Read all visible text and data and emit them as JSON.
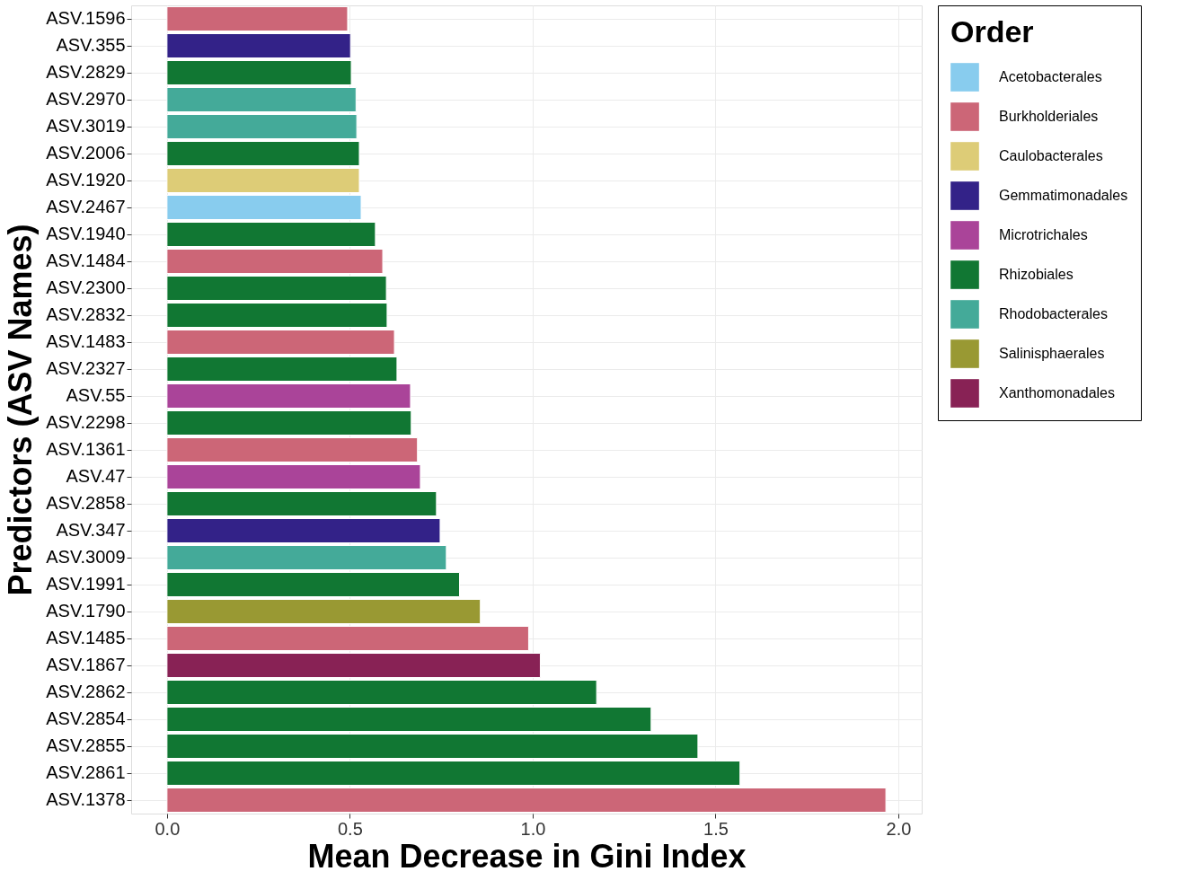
{
  "chart_data": {
    "type": "bar",
    "orientation": "horizontal",
    "xlabel": "Mean Decrease in Gini Index",
    "ylabel": "Predictors (ASV Names)",
    "legend_title": "Order",
    "legend": "right",
    "grid": true,
    "categories": [
      "ASV.1596",
      "ASV.355",
      "ASV.2829",
      "ASV.2970",
      "ASV.3019",
      "ASV.2006",
      "ASV.1920",
      "ASV.2467",
      "ASV.1940",
      "ASV.1484",
      "ASV.2300",
      "ASV.2832",
      "ASV.1483",
      "ASV.2327",
      "ASV.55",
      "ASV.2298",
      "ASV.1361",
      "ASV.47",
      "ASV.2858",
      "ASV.347",
      "ASV.3009",
      "ASV.1991",
      "ASV.1790",
      "ASV.1485",
      "ASV.1867",
      "ASV.2862",
      "ASV.2854",
      "ASV.2855",
      "ASV.2861",
      "ASV.1378"
    ],
    "xlim": [
      -0.098,
      2.064
    ],
    "xticks": [
      {
        "value": 0,
        "label": "0.0"
      },
      0.5,
      {
        "value": 1,
        "label": "1.0"
      },
      1.5,
      {
        "value": 2,
        "label": "2.0"
      }
    ],
    "series": [
      {
        "name": "Acetobacterales",
        "color": "#88ccee",
        "values": [
          null,
          null,
          null,
          null,
          null,
          null,
          null,
          0.531,
          null,
          null,
          null,
          null,
          null,
          null,
          null,
          null,
          null,
          null,
          null,
          null,
          null,
          null,
          null,
          null,
          null,
          null,
          null,
          null,
          null,
          null
        ]
      },
      {
        "name": "Burkholderiales",
        "color": "#cc6677",
        "values": [
          0.494,
          null,
          null,
          null,
          null,
          null,
          null,
          null,
          null,
          0.59,
          null,
          null,
          0.622,
          null,
          null,
          null,
          0.685,
          null,
          null,
          null,
          null,
          null,
          null,
          0.989,
          null,
          null,
          null,
          null,
          null,
          1.966
        ]
      },
      {
        "name": "Caulobacterales",
        "color": "#ddcc77",
        "values": [
          null,
          null,
          null,
          null,
          null,
          null,
          0.526,
          null,
          null,
          null,
          null,
          null,
          null,
          null,
          null,
          null,
          null,
          null,
          null,
          null,
          null,
          null,
          null,
          null,
          null,
          null,
          null,
          null,
          null,
          null
        ]
      },
      {
        "name": "Gemmatimonadales",
        "color": "#332288",
        "values": [
          null,
          0.502,
          null,
          null,
          null,
          null,
          null,
          null,
          null,
          null,
          null,
          null,
          null,
          null,
          null,
          null,
          null,
          null,
          null,
          0.747,
          null,
          null,
          null,
          null,
          null,
          null,
          null,
          null,
          null,
          null
        ]
      },
      {
        "name": "Microtrichales",
        "color": "#aa4499",
        "values": [
          null,
          null,
          null,
          null,
          null,
          null,
          null,
          null,
          null,
          null,
          null,
          null,
          null,
          null,
          0.666,
          null,
          null,
          0.693,
          null,
          null,
          null,
          null,
          null,
          null,
          null,
          null,
          null,
          null,
          null,
          null
        ]
      },
      {
        "name": "Rhizobiales",
        "color": "#117733",
        "values": [
          null,
          null,
          0.504,
          null,
          null,
          0.526,
          null,
          null,
          0.57,
          null,
          0.6,
          0.602,
          null,
          0.629,
          null,
          0.668,
          null,
          null,
          0.737,
          null,
          null,
          0.8,
          null,
          null,
          null,
          1.175,
          1.324,
          1.452,
          1.567,
          null
        ]
      },
      {
        "name": "Rhodobacterales",
        "color": "#44aa99",
        "values": [
          null,
          null,
          null,
          0.517,
          0.519,
          null,
          null,
          null,
          null,
          null,
          null,
          null,
          null,
          null,
          null,
          null,
          null,
          null,
          null,
          null,
          0.764,
          null,
          null,
          null,
          null,
          null,
          null,
          null,
          null,
          null
        ]
      },
      {
        "name": "Salinisphaerales",
        "color": "#999933",
        "values": [
          null,
          null,
          null,
          null,
          null,
          null,
          null,
          null,
          null,
          null,
          null,
          null,
          null,
          null,
          null,
          null,
          null,
          null,
          null,
          null,
          null,
          null,
          0.857,
          null,
          null,
          null,
          null,
          null,
          null,
          null
        ]
      },
      {
        "name": "Xanthomonadales",
        "color": "#882255",
        "values": [
          null,
          null,
          null,
          null,
          null,
          null,
          null,
          null,
          null,
          null,
          null,
          null,
          null,
          null,
          null,
          null,
          null,
          null,
          null,
          null,
          null,
          null,
          null,
          null,
          1.021,
          null,
          null,
          null,
          null,
          null
        ]
      }
    ]
  }
}
